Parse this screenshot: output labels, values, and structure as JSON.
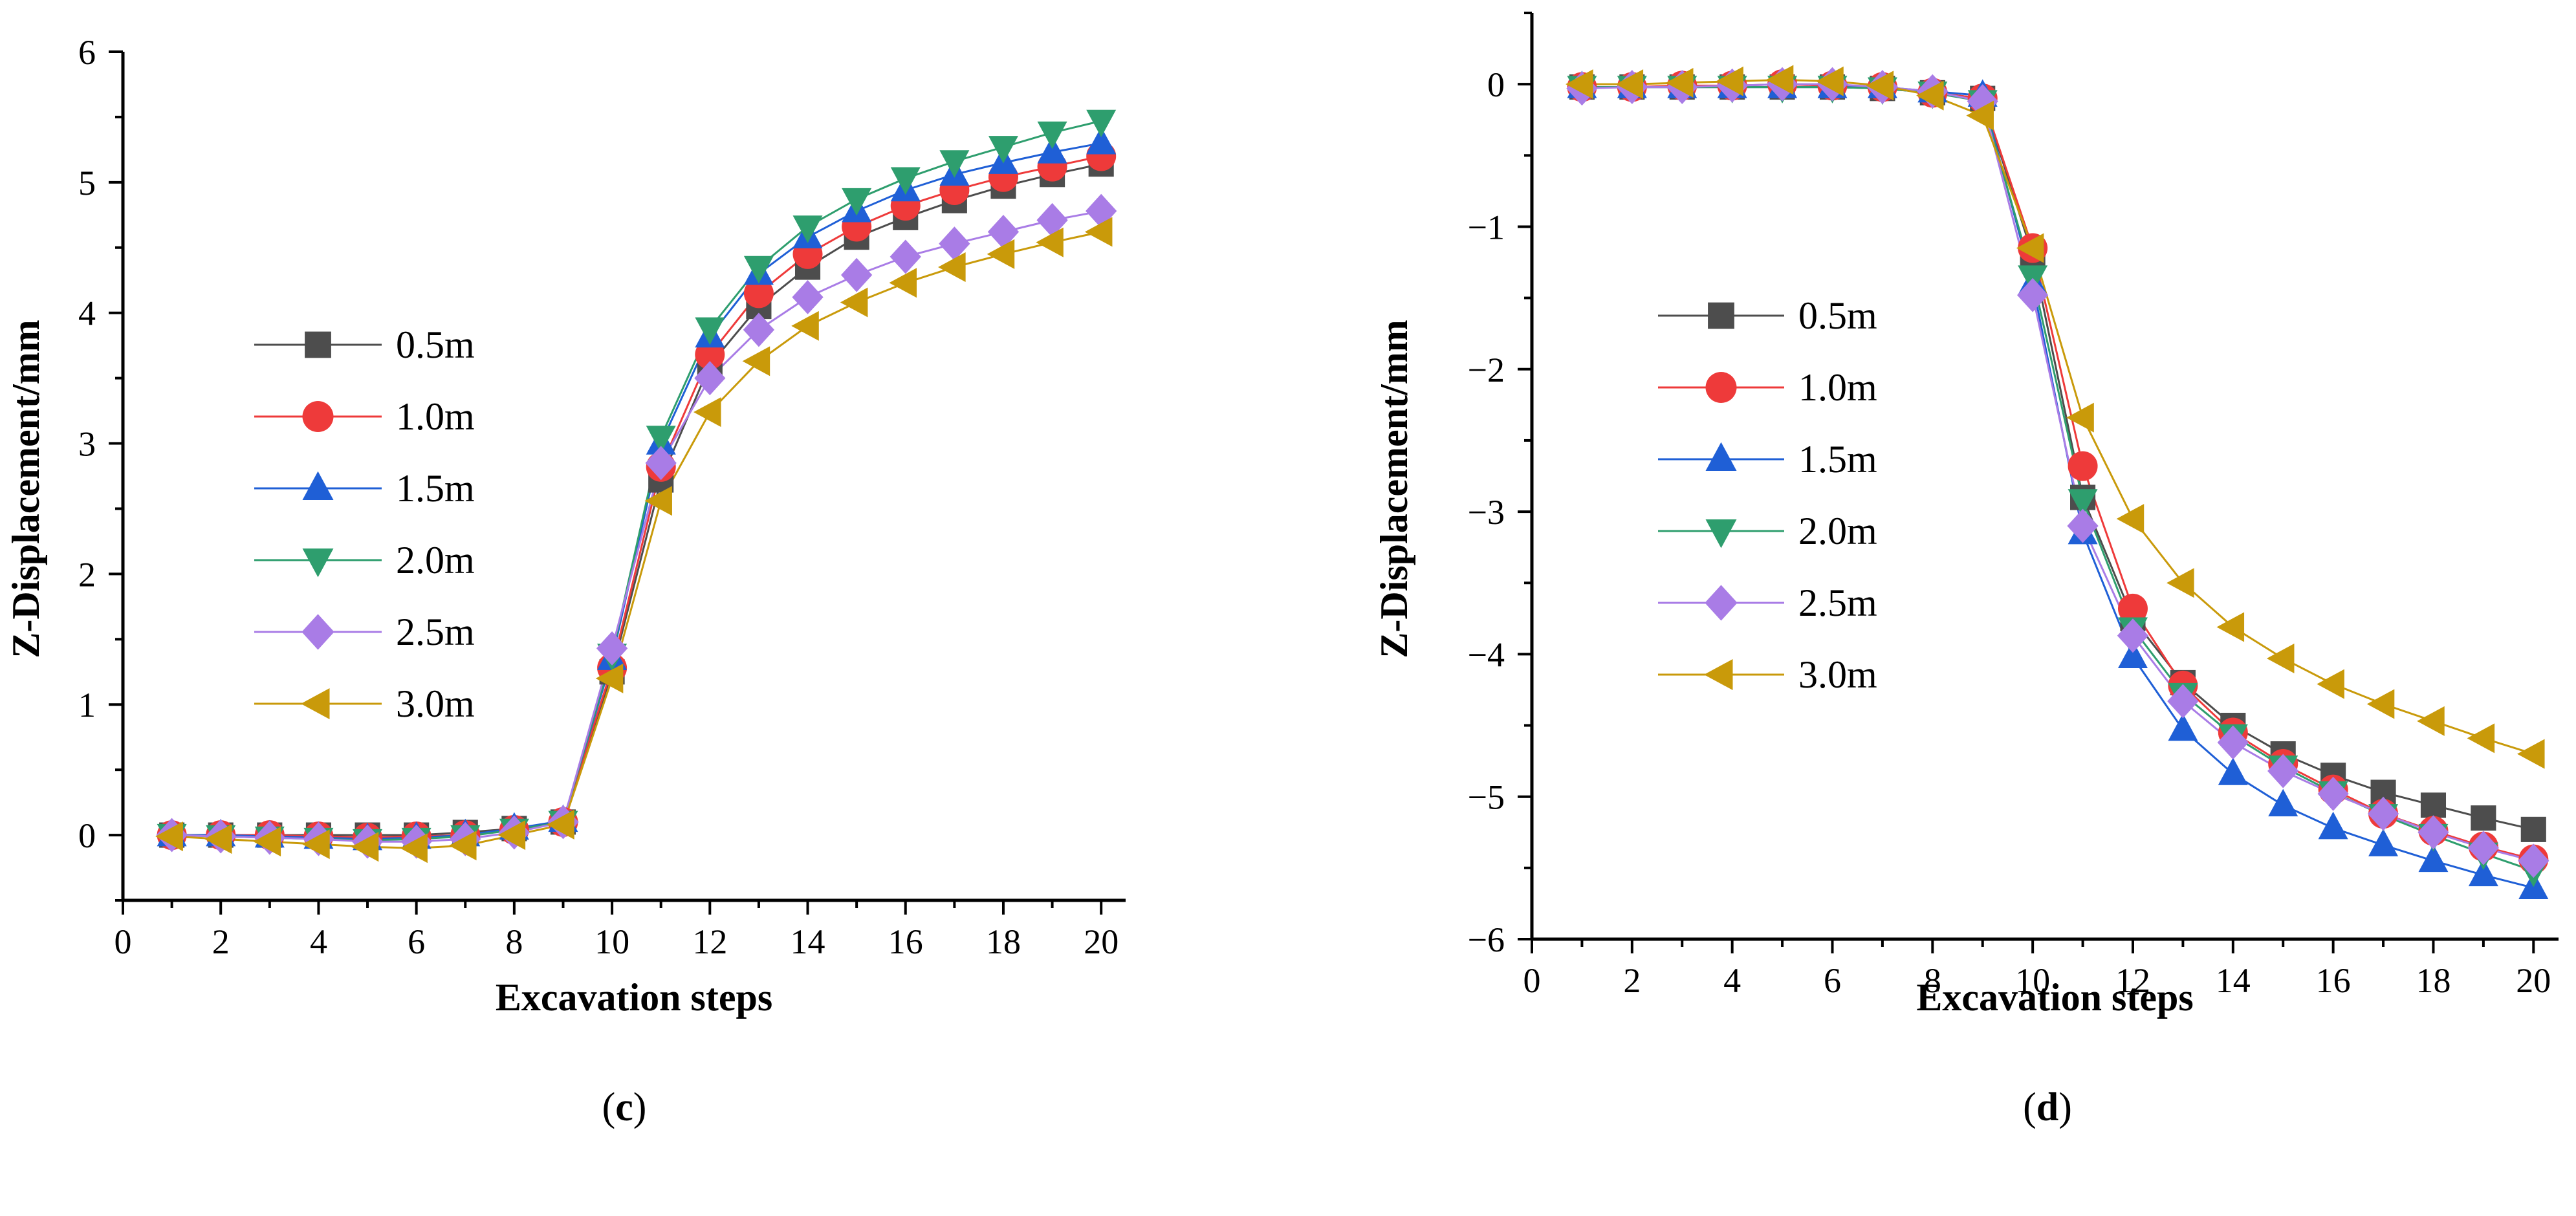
{
  "chart_data": [
    {
      "type": "line",
      "panel_label": "c",
      "xlabel": "Excavation steps",
      "ylabel": "Z-Displacement/mm",
      "xlim": [
        0,
        20.5
      ],
      "ylim": [
        -0.5,
        6
      ],
      "xticks": [
        0,
        2,
        4,
        6,
        8,
        10,
        12,
        14,
        16,
        18,
        20
      ],
      "yticks": [
        0,
        1,
        2,
        3,
        4,
        5,
        6
      ],
      "legend_position": "center-left",
      "x": [
        1,
        2,
        3,
        4,
        5,
        6,
        7,
        8,
        9,
        10,
        11,
        12,
        13,
        14,
        15,
        16,
        17,
        18,
        19,
        20
      ],
      "series": [
        {
          "name": "0.5m",
          "color": "#4d4d4d",
          "marker": "square",
          "values": [
            0.0,
            0.0,
            0.0,
            0.0,
            0.0,
            0.0,
            0.02,
            0.05,
            0.1,
            1.25,
            2.72,
            3.6,
            4.05,
            4.35,
            4.58,
            4.73,
            4.86,
            4.97,
            5.06,
            5.14
          ]
        },
        {
          "name": "1.0m",
          "color": "#ee3a3a",
          "marker": "circle",
          "values": [
            0.0,
            0.0,
            0.0,
            -0.01,
            -0.02,
            -0.01,
            0.0,
            0.04,
            0.1,
            1.28,
            2.82,
            3.68,
            4.15,
            4.45,
            4.66,
            4.82,
            4.94,
            5.04,
            5.12,
            5.2
          ]
        },
        {
          "name": "1.5m",
          "color": "#1f5fd6",
          "marker": "triangle-up",
          "values": [
            0.0,
            0.0,
            -0.01,
            -0.02,
            -0.03,
            -0.02,
            0.0,
            0.05,
            0.11,
            1.35,
            3.0,
            3.82,
            4.3,
            4.58,
            4.78,
            4.94,
            5.06,
            5.15,
            5.23,
            5.3
          ]
        },
        {
          "name": "2.0m",
          "color": "#2e9e6e",
          "marker": "triangle-down",
          "values": [
            0.0,
            -0.01,
            -0.02,
            -0.03,
            -0.04,
            -0.03,
            -0.01,
            0.04,
            0.1,
            1.38,
            3.05,
            3.88,
            4.35,
            4.66,
            4.87,
            5.03,
            5.16,
            5.27,
            5.38,
            5.47
          ]
        },
        {
          "name": "2.5m",
          "color": "#a97ce6",
          "marker": "diamond",
          "values": [
            0.0,
            -0.01,
            -0.02,
            -0.03,
            -0.05,
            -0.05,
            -0.03,
            0.02,
            0.1,
            1.43,
            2.85,
            3.5,
            3.87,
            4.12,
            4.29,
            4.43,
            4.53,
            4.62,
            4.71,
            4.78
          ]
        },
        {
          "name": "3.0m",
          "color": "#c99a0a",
          "marker": "triangle-left",
          "values": [
            -0.01,
            -0.03,
            -0.05,
            -0.07,
            -0.09,
            -0.1,
            -0.08,
            0.0,
            0.08,
            1.2,
            2.56,
            3.24,
            3.63,
            3.9,
            4.08,
            4.23,
            4.35,
            4.45,
            4.54,
            4.62
          ]
        }
      ]
    },
    {
      "type": "line",
      "panel_label": "d",
      "xlabel": "Excavation steps",
      "ylabel": "Z-Displacement/mm",
      "xlim": [
        0,
        20.5
      ],
      "ylim": [
        -6,
        0.5
      ],
      "xticks": [
        0,
        2,
        4,
        6,
        8,
        10,
        12,
        14,
        16,
        18,
        20
      ],
      "yticks": [
        0,
        -1,
        -2,
        -3,
        -4,
        -5,
        -6
      ],
      "legend_position": "center-left",
      "x": [
        1,
        2,
        3,
        4,
        5,
        6,
        7,
        8,
        9,
        10,
        11,
        12,
        13,
        14,
        15,
        16,
        17,
        18,
        19,
        20
      ],
      "series": [
        {
          "name": "0.5m",
          "color": "#4d4d4d",
          "marker": "square",
          "values": [
            -0.02,
            -0.02,
            -0.02,
            -0.02,
            -0.02,
            -0.02,
            -0.03,
            -0.06,
            -0.1,
            -1.2,
            -2.9,
            -3.75,
            -4.2,
            -4.5,
            -4.7,
            -4.85,
            -4.97,
            -5.06,
            -5.15,
            -5.23
          ]
        },
        {
          "name": "1.0m",
          "color": "#ee3a3a",
          "marker": "circle",
          "values": [
            -0.02,
            -0.02,
            -0.01,
            -0.01,
            0.0,
            -0.01,
            -0.02,
            -0.06,
            -0.1,
            -1.15,
            -2.68,
            -3.68,
            -4.22,
            -4.55,
            -4.77,
            -4.95,
            -5.12,
            -5.24,
            -5.35,
            -5.44
          ]
        },
        {
          "name": "1.5m",
          "color": "#1f5fd6",
          "marker": "triangle-up",
          "values": [
            -0.02,
            -0.02,
            -0.02,
            -0.02,
            -0.02,
            -0.02,
            -0.02,
            -0.05,
            -0.08,
            -1.4,
            -3.15,
            -4.02,
            -4.53,
            -4.84,
            -5.06,
            -5.22,
            -5.34,
            -5.45,
            -5.55,
            -5.64
          ]
        },
        {
          "name": "2.0m",
          "color": "#2e9e6e",
          "marker": "triangle-down",
          "values": [
            -0.02,
            -0.02,
            -0.02,
            -0.02,
            -0.02,
            -0.02,
            -0.03,
            -0.06,
            -0.12,
            -1.35,
            -2.92,
            -3.82,
            -4.28,
            -4.57,
            -4.79,
            -4.97,
            -5.13,
            -5.27,
            -5.4,
            -5.52
          ]
        },
        {
          "name": "2.5m",
          "color": "#a97ce6",
          "marker": "diamond",
          "values": [
            -0.03,
            -0.02,
            -0.02,
            -0.01,
            0.0,
            0.0,
            -0.02,
            -0.05,
            -0.12,
            -1.48,
            -3.1,
            -3.87,
            -4.33,
            -4.62,
            -4.82,
            -4.98,
            -5.12,
            -5.25,
            -5.36,
            -5.45
          ]
        },
        {
          "name": "3.0m",
          "color": "#c99a0a",
          "marker": "triangle-left",
          "values": [
            0.0,
            0.0,
            0.01,
            0.02,
            0.03,
            0.02,
            -0.01,
            -0.08,
            -0.22,
            -1.15,
            -2.34,
            -3.05,
            -3.5,
            -3.81,
            -4.03,
            -4.21,
            -4.35,
            -4.47,
            -4.59,
            -4.7
          ]
        }
      ]
    }
  ]
}
